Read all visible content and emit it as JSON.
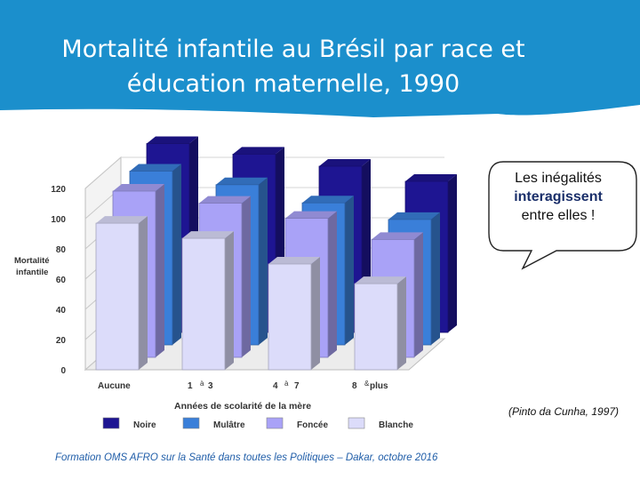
{
  "slide": {
    "title_line1": "Mortalité infantile au Brésil par race et",
    "title_line2": "éducation maternelle, 1990",
    "banner_color": "#1b8fcc",
    "callout": {
      "line1": "Les inégalités",
      "line2": "interagissent",
      "line3": "entre elles !"
    },
    "citation": "(Pinto da Cunha, 1997)",
    "footer": "Formation OMS AFRO sur la Santé dans toutes les Politiques – Dakar, octobre 2016"
  },
  "chart_data": {
    "type": "bar",
    "variant": "3d-grouped",
    "title": "",
    "ylabel": "Mortalité infantile",
    "xlabel": "Années de scolarité de la mère",
    "ylim": [
      0,
      120
    ],
    "yticks": [
      "0",
      "20",
      "40",
      "60",
      "80",
      "100",
      "120"
    ],
    "category_labels": [
      {
        "a": "Aucune",
        "b": "",
        "c": ""
      },
      {
        "a": "1",
        "b": "à",
        "c": "3"
      },
      {
        "a": "4",
        "b": "à",
        "c": "7"
      },
      {
        "a": "8",
        "b": "&",
        "c": "plus"
      }
    ],
    "series": [
      {
        "name": "Noire",
        "color": "#1e1592",
        "values": [
          125,
          118,
          110,
          100
        ]
      },
      {
        "name": "Mulâtre",
        "color": "#3a7fd9",
        "values": [
          115,
          106,
          94,
          83
        ]
      },
      {
        "name": "Foncée",
        "color": "#a9a2f7",
        "values": [
          110,
          102,
          92,
          78
        ]
      },
      {
        "name": "Blanche",
        "color": "#dcdcfa",
        "values": [
          97,
          87,
          70,
          57
        ]
      }
    ]
  }
}
